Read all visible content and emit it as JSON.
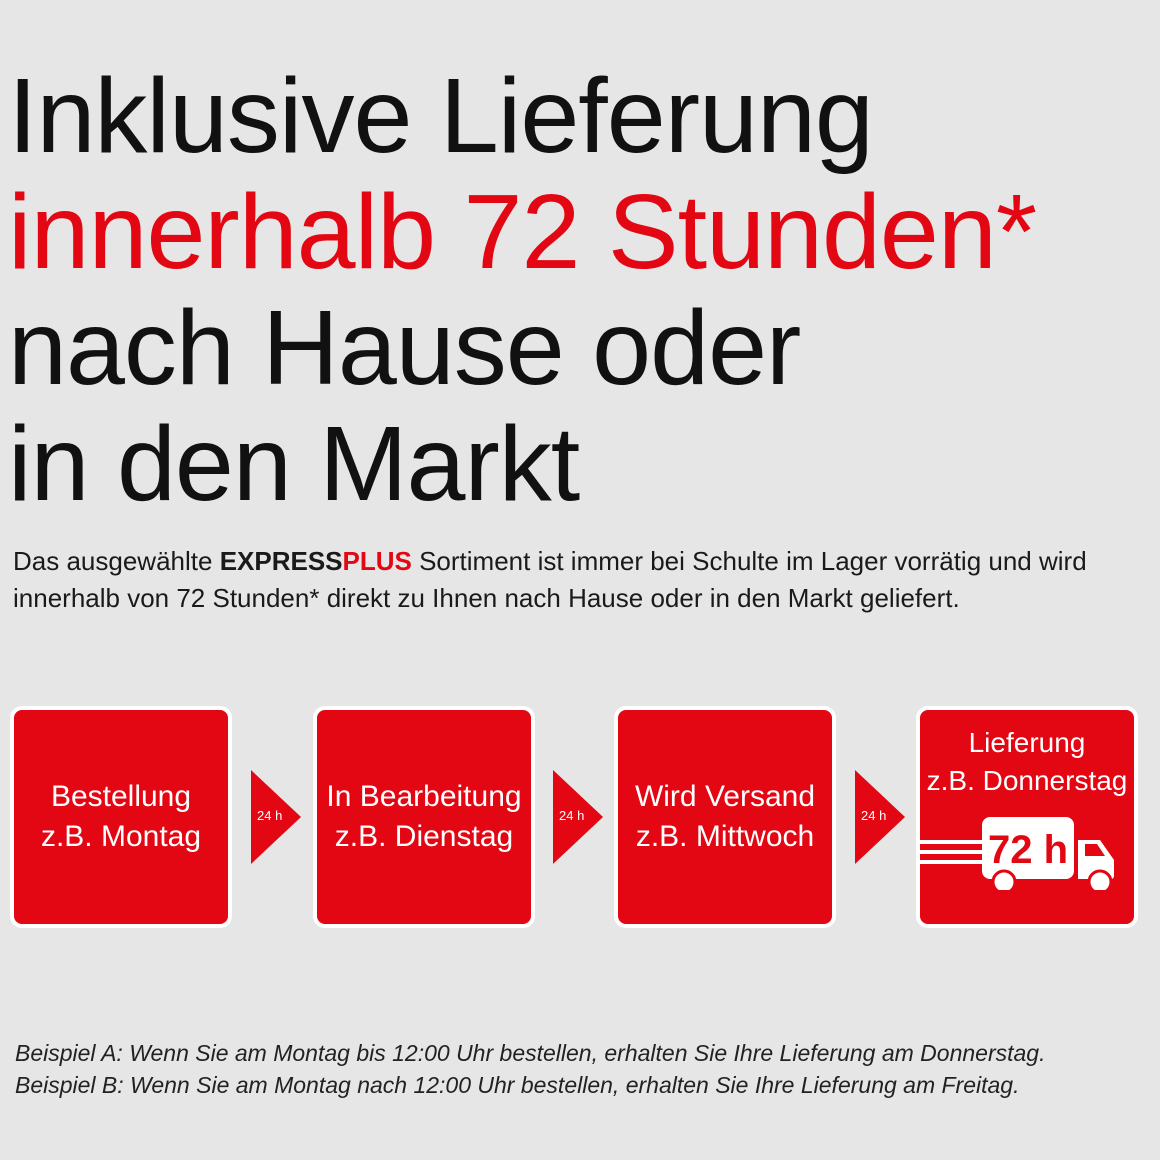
{
  "headline": {
    "line1": "Inklusive Lieferung",
    "line2": "innerhalb 72 Stunden*",
    "line3": "nach Hause oder",
    "line4": "in den Markt"
  },
  "intro": {
    "prefix": "Das ausgewählte ",
    "brand_express": "EXPRESS",
    "brand_plus": "PLUS",
    "line1_rest": " Sortiment ist immer bei Schulte im Lager vorrätig und wird",
    "line2": "innerhalb von 72 Stunden* direkt zu Ihnen nach Hause oder in den Markt geliefert."
  },
  "steps": [
    {
      "title": "Bestellung",
      "day": "z.B. Montag"
    },
    {
      "title": "In Bearbeitung",
      "day": "z.B. Dienstag"
    },
    {
      "title": "Wird Versand",
      "day": "z.B. Mittwoch"
    },
    {
      "title": "Lieferung",
      "day": "z.B. Donnerstag",
      "badge": "72 h",
      "icon": "delivery-truck-icon"
    }
  ],
  "arrows": [
    "24 h",
    "24 h",
    "24 h"
  ],
  "footer": {
    "line1": "Beispiel A: Wenn Sie am Montag bis 12:00 Uhr bestellen, erhalten Sie Ihre Lieferung am Donnerstag.",
    "line2": "Beispiel B: Wenn Sie am Montag nach 12:00 Uhr bestellen, erhalten Sie Ihre Lieferung am Freitag."
  },
  "colors": {
    "accent": "#e30613",
    "background": "#e6e6e6",
    "text": "#111111"
  }
}
